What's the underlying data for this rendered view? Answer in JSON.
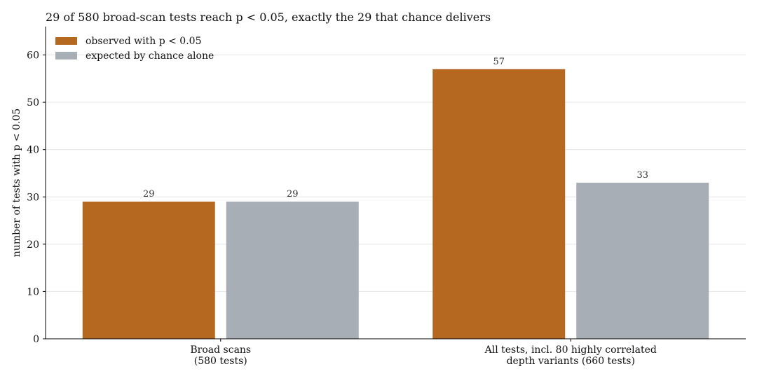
{
  "chart_data": {
    "type": "bar",
    "title": "29 of 580 broad-scan tests reach p < 0.05, exactly the 29 that chance delivers",
    "xlabel": "",
    "ylabel": "number of tests with p < 0.05",
    "ylim": [
      0,
      66
    ],
    "yticks": [
      0,
      10,
      20,
      30,
      40,
      50,
      60
    ],
    "grid": "horizontal",
    "legend": "top-left",
    "categories": [
      [
        "Broad scans",
        "(580 tests)"
      ],
      [
        "All tests, incl. 80 highly correlated",
        "depth variants (660 tests)"
      ]
    ],
    "series": [
      {
        "name": "observed with p < 0.05",
        "color": "#b5681f",
        "values": [
          29,
          57
        ]
      },
      {
        "name": "expected by chance alone",
        "color": "#a8aeb6",
        "values": [
          29,
          33
        ]
      }
    ]
  }
}
